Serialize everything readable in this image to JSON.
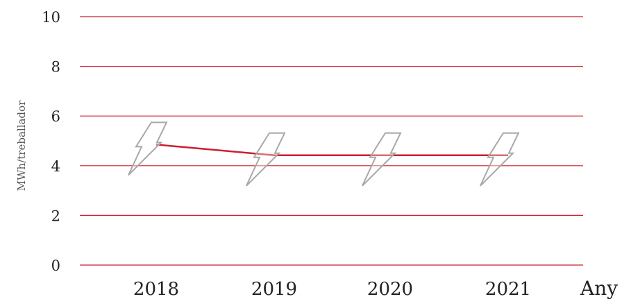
{
  "chart_data": {
    "type": "line",
    "categories": [
      "2018",
      "2019",
      "2020",
      "2021"
    ],
    "values": [
      4.85,
      4.42,
      4.42,
      4.42
    ],
    "xlabel": "Any",
    "ylabel": "MWh/treballador",
    "ylim": [
      0,
      10
    ],
    "yticks": [
      "0",
      "2",
      "4",
      "6",
      "8",
      "10"
    ],
    "grid": true,
    "marker": "lightning-bolt-icon",
    "colors": {
      "line": "#cc1f2d",
      "grid": "#cc1f2d",
      "marker_stroke": "#a8a8a8"
    }
  }
}
